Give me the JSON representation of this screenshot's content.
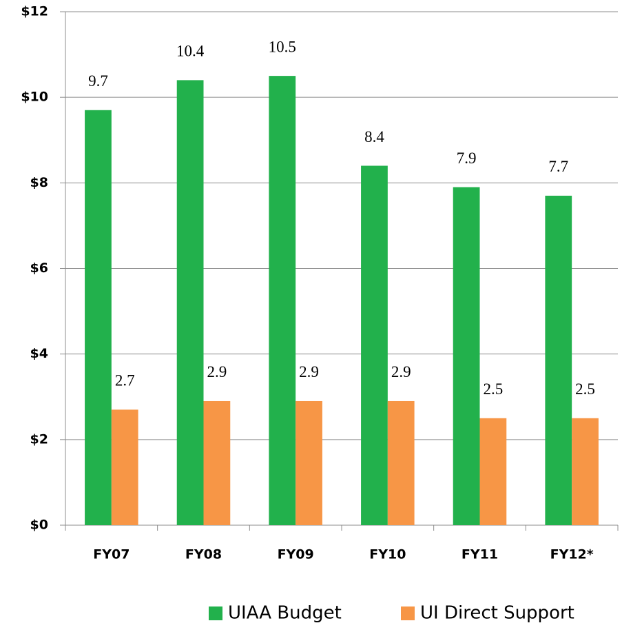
{
  "chart_data": {
    "type": "bar",
    "categories": [
      "FY07",
      "FY08",
      "FY09",
      "FY10",
      "FY11",
      "FY12*"
    ],
    "series": [
      {
        "name": "UIAA Budget",
        "color": "#22b14c",
        "values": [
          9.7,
          10.4,
          10.5,
          8.4,
          7.9,
          7.7
        ]
      },
      {
        "name": "UI Direct Support",
        "color": "#f79646",
        "values": [
          2.7,
          2.9,
          2.9,
          2.9,
          2.5,
          2.5
        ]
      }
    ],
    "ylim": [
      0,
      12
    ],
    "yticks": [
      {
        "value": 0,
        "label": "$0"
      },
      {
        "value": 2,
        "label": "$2"
      },
      {
        "value": 4,
        "label": "$4"
      },
      {
        "value": 6,
        "label": "$6"
      },
      {
        "value": 8,
        "label": "$8"
      },
      {
        "value": 10,
        "label": "$10"
      },
      {
        "value": 12,
        "label": "$12"
      }
    ],
    "grid": true,
    "legend": "bottom"
  }
}
